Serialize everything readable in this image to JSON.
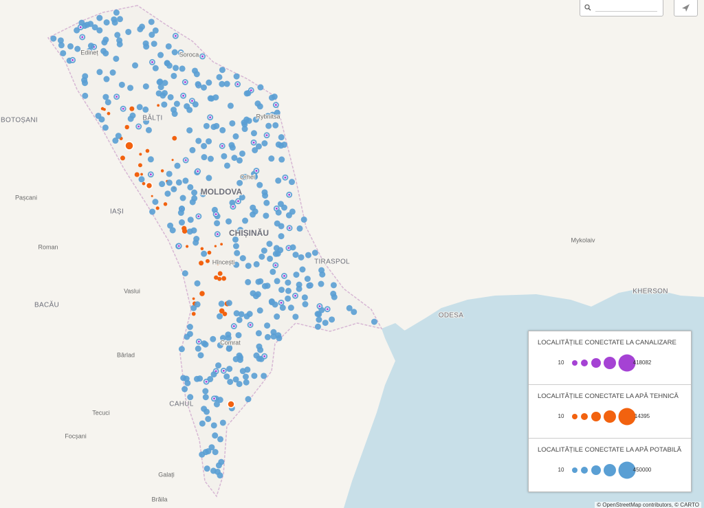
{
  "map": {
    "labels": [
      "BOTOȘANI",
      "IAȘI",
      "Pașcani",
      "Roman",
      "BACĂU",
      "Vaslui",
      "Bârlad",
      "Tecuci",
      "Focșani",
      "Galați",
      "Brăila",
      "CAHUL",
      "Comrat",
      "Hîncești",
      "CHIȘINĂU",
      "MOLDOVA",
      "Orhei",
      "BĂLȚI",
      "Edineț",
      "Soroca",
      "Rybnitsa",
      "TIRASPOL",
      "ODESA",
      "Mykolaiv",
      "KHERSON"
    ]
  },
  "legend": {
    "sections": [
      {
        "title": "LOCALITĂȚILE CONECTATE LA CANALIZARE",
        "min": 10,
        "max": 418082,
        "color": "#a542d4"
      },
      {
        "title": "LOCALITĂȚILE CONECTATE LA APĂ TEHNICĂ",
        "min": 10,
        "max": 14395,
        "color": "#f2620f"
      },
      {
        "title": "LOCALITĂȚILE CONECTATE LA APĂ POTABILĂ",
        "min": 10,
        "max": 450000,
        "color": "#5a9fd4"
      }
    ]
  },
  "attribution": "© OpenStreetMap contributors, © CARTO"
}
